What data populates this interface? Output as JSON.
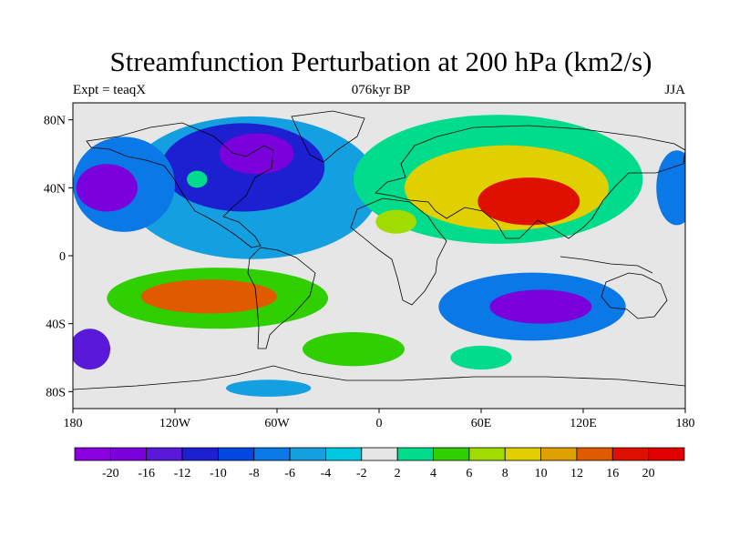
{
  "title": "Streamfunction Perturbation at 200 hPa (km2/s)",
  "subtitle_left": "Expt = teaqX",
  "subtitle_center": "076kyr BP",
  "subtitle_right": "JJA",
  "map": {
    "projection": "cylindrical-equidistant",
    "lon_range": [
      -180,
      180
    ],
    "lat_range": [
      -90,
      90
    ],
    "lat_ticks": [
      {
        "value": 80,
        "label": "80N"
      },
      {
        "value": 40,
        "label": "40N"
      },
      {
        "value": 0,
        "label": "0"
      },
      {
        "value": -40,
        "label": "40S"
      },
      {
        "value": -80,
        "label": "80S"
      }
    ],
    "lon_ticks": [
      {
        "value": -180,
        "label": "180"
      },
      {
        "value": -120,
        "label": "120W"
      },
      {
        "value": -60,
        "label": "60W"
      },
      {
        "value": 0,
        "label": "0"
      },
      {
        "value": 60,
        "label": "60E"
      },
      {
        "value": 120,
        "label": "120E"
      },
      {
        "value": 180,
        "label": "180"
      }
    ],
    "coastlines": true
  },
  "colorbar": {
    "levels": [
      "-20",
      "-16",
      "-12",
      "-10",
      "-8",
      "-6",
      "-4",
      "-2",
      "2",
      "4",
      "6",
      "8",
      "10",
      "12",
      "16",
      "20"
    ],
    "colors": [
      "#8a00e0",
      "#7a00dc",
      "#5a18d8",
      "#1c20d0",
      "#0048e0",
      "#0a78e6",
      "#14a0e0",
      "#00c8e0",
      "#e6e6e6",
      "#00dc8c",
      "#30d000",
      "#a0dc00",
      "#e0d000",
      "#e0a000",
      "#e05a00",
      "#e01000",
      "#e00000"
    ]
  },
  "contours": [
    {
      "name": "north-atlantic-negative",
      "level": -4,
      "lon": -75,
      "lat": 40,
      "rlon": 75,
      "rlat": 42
    },
    {
      "name": "north-america-negative",
      "level": -10,
      "lon": -80,
      "lat": 52,
      "rlon": 48,
      "rlat": 26
    },
    {
      "name": "canada-negative-core",
      "level": -16,
      "lon": -72,
      "lat": 60,
      "rlon": 22,
      "rlat": 12
    },
    {
      "name": "pacific-negative",
      "level": -6,
      "lon": -150,
      "lat": 42,
      "rlon": 30,
      "rlat": 28
    },
    {
      "name": "pacific-negative-core",
      "level": -16,
      "lon": -160,
      "lat": 40,
      "rlon": 18,
      "rlat": 14
    },
    {
      "name": "pacific-positive-spot",
      "level": 4,
      "lon": -107,
      "lat": 45,
      "rlon": 6,
      "rlat": 5
    },
    {
      "name": "eurasia-positive",
      "level": 4,
      "lon": 70,
      "lat": 45,
      "rlon": 85,
      "rlat": 38
    },
    {
      "name": "eurasia-positive-mid",
      "level": 10,
      "lon": 75,
      "lat": 40,
      "rlon": 60,
      "rlat": 25
    },
    {
      "name": "asia-positive-core",
      "level": 20,
      "lon": 88,
      "lat": 32,
      "rlon": 30,
      "rlat": 14
    },
    {
      "name": "africa-positive",
      "level": 8,
      "lon": 10,
      "lat": 20,
      "rlon": 12,
      "rlat": 7
    },
    {
      "name": "south-pacific-positive",
      "level": 6,
      "lon": -95,
      "lat": -25,
      "rlon": 65,
      "rlat": 18
    },
    {
      "name": "south-pacific-positive-core",
      "level": 16,
      "lon": -100,
      "lat": -24,
      "rlon": 40,
      "rlat": 10
    },
    {
      "name": "indian-ocean-negative",
      "level": -6,
      "lon": 90,
      "lat": -30,
      "rlon": 55,
      "rlat": 20
    },
    {
      "name": "indian-ocean-negative-core",
      "level": -16,
      "lon": 95,
      "lat": -30,
      "rlon": 30,
      "rlat": 10
    },
    {
      "name": "south-atlantic-positive",
      "level": 6,
      "lon": -15,
      "lat": -55,
      "rlon": 30,
      "rlat": 10
    },
    {
      "name": "southern-ocean-positive",
      "level": 4,
      "lon": 60,
      "lat": -60,
      "rlon": 18,
      "rlat": 7
    },
    {
      "name": "southwest-pacific-negative",
      "level": -12,
      "lon": -170,
      "lat": -55,
      "rlon": 12,
      "rlat": 12
    },
    {
      "name": "antarctic-negative",
      "level": -4,
      "lon": -65,
      "lat": -78,
      "rlon": 25,
      "rlat": 5
    },
    {
      "name": "northeast-pacific-negative",
      "level": -6,
      "lon": 175,
      "lat": 40,
      "rlon": 12,
      "rlat": 22
    }
  ]
}
